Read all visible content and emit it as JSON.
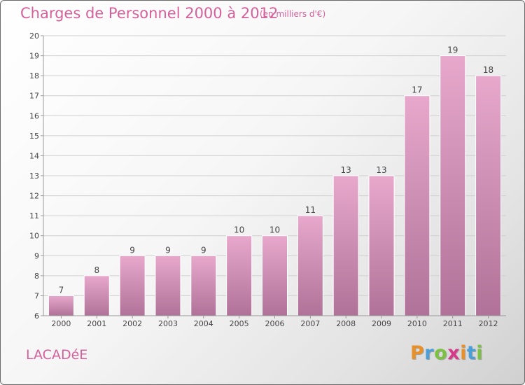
{
  "header": {
    "title": "Charges de Personnel 2000 à 2012",
    "subtitle": "(en milliers d'€)"
  },
  "footer": {
    "place": "LACADéE",
    "logo_letters": [
      "P",
      "r",
      "o",
      "x",
      "i",
      "t",
      "i"
    ],
    "logo_colors": [
      "#e8902a",
      "#4a9fd8",
      "#7cc242",
      "#d83a8a",
      "#e8902a",
      "#4a9fd8",
      "#7cc242"
    ]
  },
  "colors": {
    "bar_top": "#e7a8cc",
    "bar_bottom": "#b07298",
    "grid": "#d0d0d0",
    "axis": "#9a9a9a",
    "text": "#444444",
    "accent": "#d6609a"
  },
  "chart_data": {
    "type": "bar",
    "title": "Charges de Personnel 2000 à 2012",
    "subtitle": "(en milliers d'€)",
    "categories": [
      "2000",
      "2001",
      "2002",
      "2003",
      "2004",
      "2005",
      "2006",
      "2007",
      "2008",
      "2009",
      "2010",
      "2011",
      "2012"
    ],
    "values": [
      7,
      8,
      9,
      9,
      9,
      10,
      10,
      11,
      13,
      13,
      17,
      19,
      18
    ],
    "data_labels": [
      "7",
      "8",
      "9",
      "9",
      "9",
      "10",
      "10",
      "11",
      "13",
      "13",
      "17",
      "19",
      "18"
    ],
    "ylim": [
      6,
      20
    ],
    "yticks": [
      6,
      7,
      8,
      9,
      10,
      11,
      12,
      13,
      14,
      15,
      16,
      17,
      18,
      19,
      20
    ],
    "ytick_labels": [
      "6",
      "7",
      "8",
      "9",
      "10",
      "11",
      "12",
      "13",
      "14",
      "15",
      "16",
      "17",
      "18",
      "19",
      "20"
    ],
    "xlabel": "",
    "ylabel": "",
    "grid": true
  }
}
